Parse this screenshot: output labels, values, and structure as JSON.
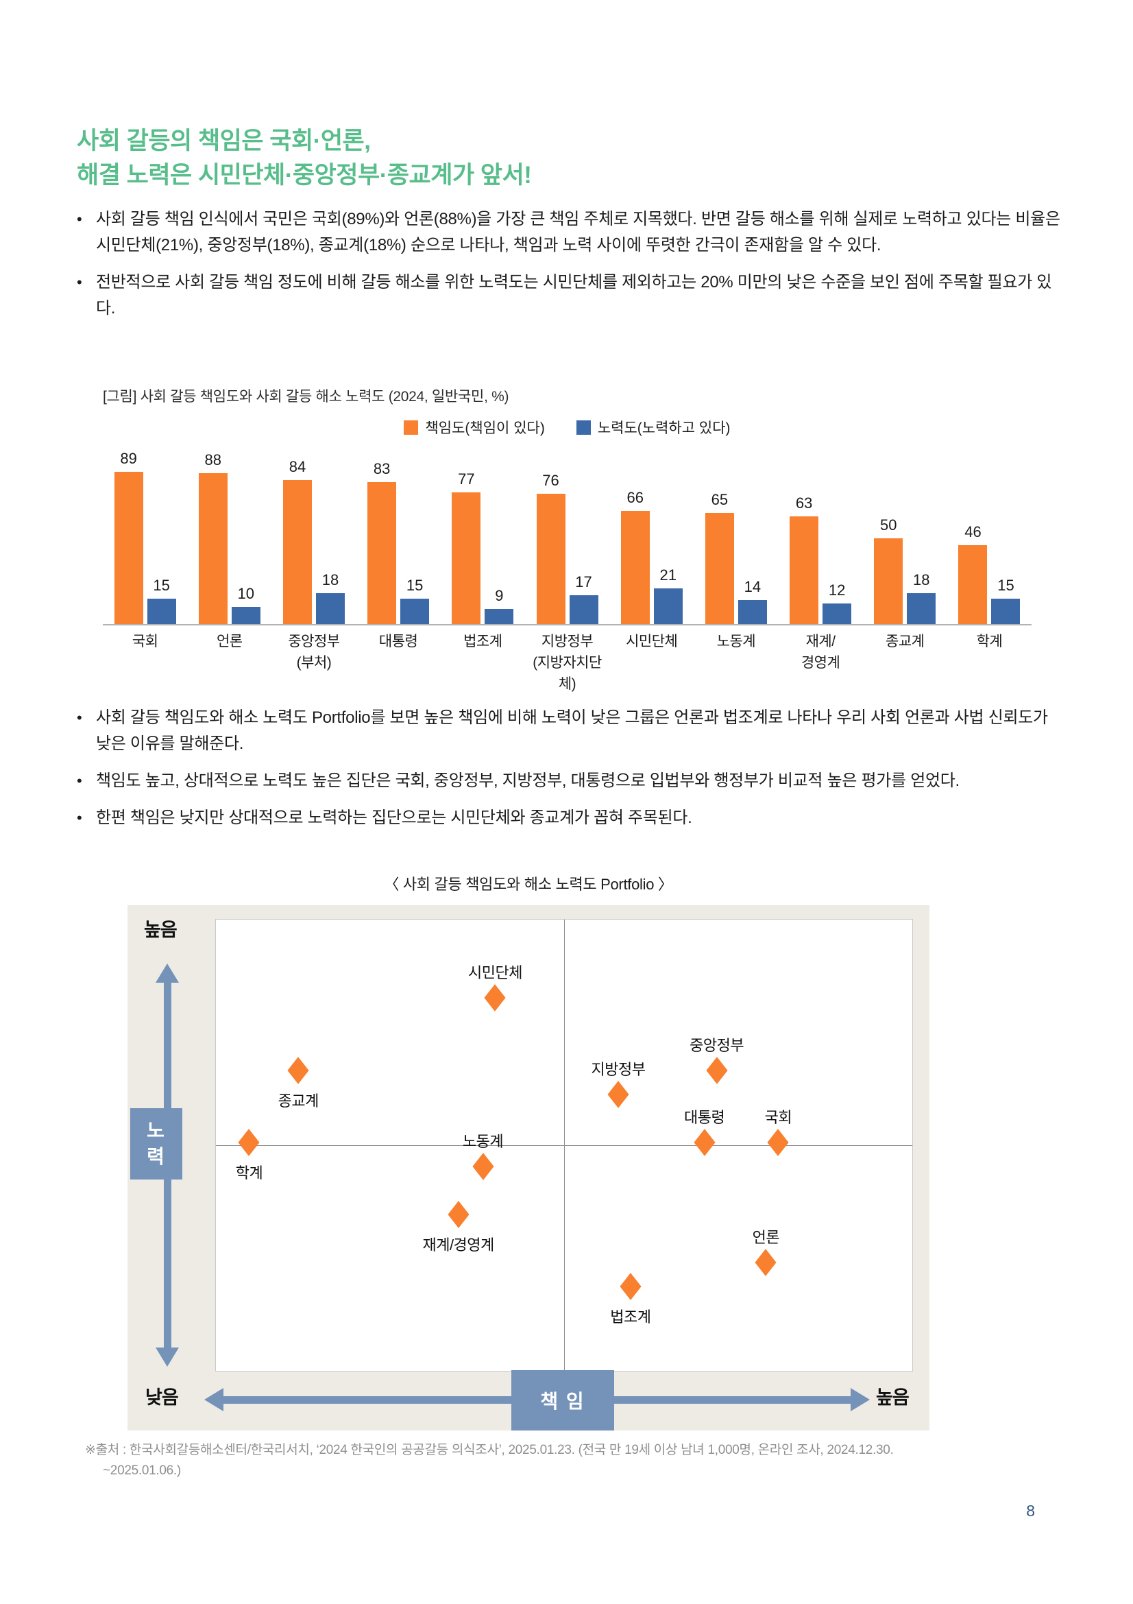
{
  "colors": {
    "title_green": "#57bd8a",
    "bar_orange": "#f8802e",
    "bar_blue": "#3c69a8",
    "slate_blue": "#7592b8",
    "beige_panel": "#eeebe5",
    "page_number": "#33557f"
  },
  "title": {
    "line1": "사회 갈등의 책임은 국회·언론,",
    "line2": "해결 노력은 시민단체·중앙정부·종교계가 앞서!"
  },
  "bullets_top": [
    "사회 갈등 책임 인식에서 국민은 국회(89%)와 언론(88%)을 가장 큰 책임 주체로 지목했다. 반면 갈등 해소를 위해 실제로 노력하고 있다는 비율은 시민단체(21%), 중앙정부(18%), 종교계(18%) 순으로 나타나, 책임과 노력 사이에 뚜렷한 간극이 존재함을 알 수 있다.",
    "전반적으로 사회 갈등 책임 정도에 비해 갈등 해소를 위한 노력도는 시민단체를 제외하고는 20% 미만의 낮은 수준을 보인 점에 주목할 필요가 있다."
  ],
  "bullets_bottom": [
    "사회 갈등 책임도와 해소 노력도 Portfolio를 보면 높은 책임에 비해 노력이 낮은 그룹은 언론과 법조계로 나타나 우리 사회 언론과 사법 신뢰도가 낮은 이유를 말해준다.",
    "책임도 높고, 상대적으로 노력도 높은 집단은 국회, 중앙정부, 지방정부, 대통령으로 입법부와 행정부가 비교적 높은 평가를 얻었다.",
    "한편 책임은 낮지만 상대적으로 노력하는 집단으로는 시민단체와 종교계가 꼽혀 주목된다."
  ],
  "chart_data": [
    {
      "type": "bar",
      "title": "[그림] 사회 갈등 책임도와 사회 갈등 해소 노력도 (2024, 일반국민, %)",
      "categories": [
        [
          "국회"
        ],
        [
          "언론"
        ],
        [
          "중앙정부",
          "(부처)"
        ],
        [
          "대통령"
        ],
        [
          "법조계"
        ],
        [
          "지방정부",
          "(지방자치단체)"
        ],
        [
          "시민단체"
        ],
        [
          "노동계"
        ],
        [
          "재계/",
          "경영계"
        ],
        [
          "종교계"
        ],
        [
          "학계"
        ]
      ],
      "series": [
        {
          "name": "책임도(책임이 있다)",
          "color": "#f8802e",
          "values": [
            89,
            88,
            84,
            83,
            77,
            76,
            66,
            65,
            63,
            50,
            46
          ]
        },
        {
          "name": "노력도(노력하고 있다)",
          "color": "#3c69a8",
          "values": [
            15,
            10,
            18,
            15,
            9,
            17,
            21,
            14,
            12,
            18,
            15
          ]
        }
      ],
      "ylim": [
        0,
        100
      ],
      "grid": false,
      "legend_position": "top",
      "data_labels": true
    },
    {
      "type": "scatter",
      "title": "〈 사회 갈등 책임도와 해소 노력도 Portfolio 〉",
      "xlabel": "책 임",
      "ylabel": "노 력",
      "axis_ends": {
        "x_left": "낮음",
        "x_right": "높음",
        "y_top": "높음",
        "y_bottom": "낮음"
      },
      "points": [
        {
          "label": "시민단체",
          "x": 66,
          "y": 21,
          "label_pos": "above"
        },
        {
          "label": "종교계",
          "x": 50,
          "y": 18,
          "label_pos": "below"
        },
        {
          "label": "학계",
          "x": 46,
          "y": 15,
          "label_pos": "below"
        },
        {
          "label": "중앙정부",
          "x": 84,
          "y": 18,
          "label_pos": "above"
        },
        {
          "label": "지방정부",
          "x": 76,
          "y": 17,
          "label_pos": "above"
        },
        {
          "label": "대통령",
          "x": 83,
          "y": 15,
          "label_pos": "above"
        },
        {
          "label": "국회",
          "x": 89,
          "y": 15,
          "label_pos": "above"
        },
        {
          "label": "노동계",
          "x": 65,
          "y": 14,
          "label_pos": "above"
        },
        {
          "label": "재계/경영계",
          "x": 63,
          "y": 12,
          "label_pos": "below"
        },
        {
          "label": "언론",
          "x": 88,
          "y": 10,
          "label_pos": "above"
        },
        {
          "label": "법조계",
          "x": 77,
          "y": 9,
          "label_pos": "below"
        }
      ]
    }
  ],
  "source": {
    "line1": "※출처 : 한국사회갈등해소센터/한국리서치, ‘2024 한국인의 공공갈등 의식조사’, 2025.01.23. (전국 만 19세 이상 남녀 1,000명, 온라인 조사, 2024.12.30.",
    "line2": "~2025.01.06.)"
  },
  "page": {
    "number": "8"
  }
}
